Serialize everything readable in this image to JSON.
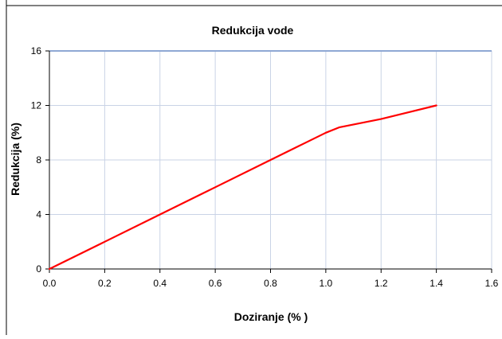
{
  "chart_data": {
    "type": "line",
    "title": "Redukcija vode",
    "xlabel": "Doziranje (% )",
    "ylabel": "Redukcija (%)",
    "xlim": [
      0,
      1.6
    ],
    "ylim": [
      0,
      16
    ],
    "xticks": [
      "0.0",
      "0.2",
      "0.4",
      "0.6",
      "0.8",
      "1.0",
      "1.2",
      "1.4",
      "1.6"
    ],
    "yticks": [
      "0",
      "4",
      "8",
      "12",
      "16"
    ],
    "grid": true,
    "legend": "none",
    "series": [
      {
        "color": "#ff0000",
        "x": [
          0.0,
          0.2,
          0.4,
          0.6,
          0.8,
          0.9,
          1.0,
          1.05,
          1.2,
          1.4
        ],
        "y": [
          0,
          2,
          4,
          6,
          8,
          9,
          10,
          10.4,
          11,
          12
        ]
      }
    ],
    "colors": {
      "grid": "#c9d3e6",
      "top_grid": "#8fa8d4",
      "axis": "#000000",
      "frame": "#000000"
    }
  }
}
